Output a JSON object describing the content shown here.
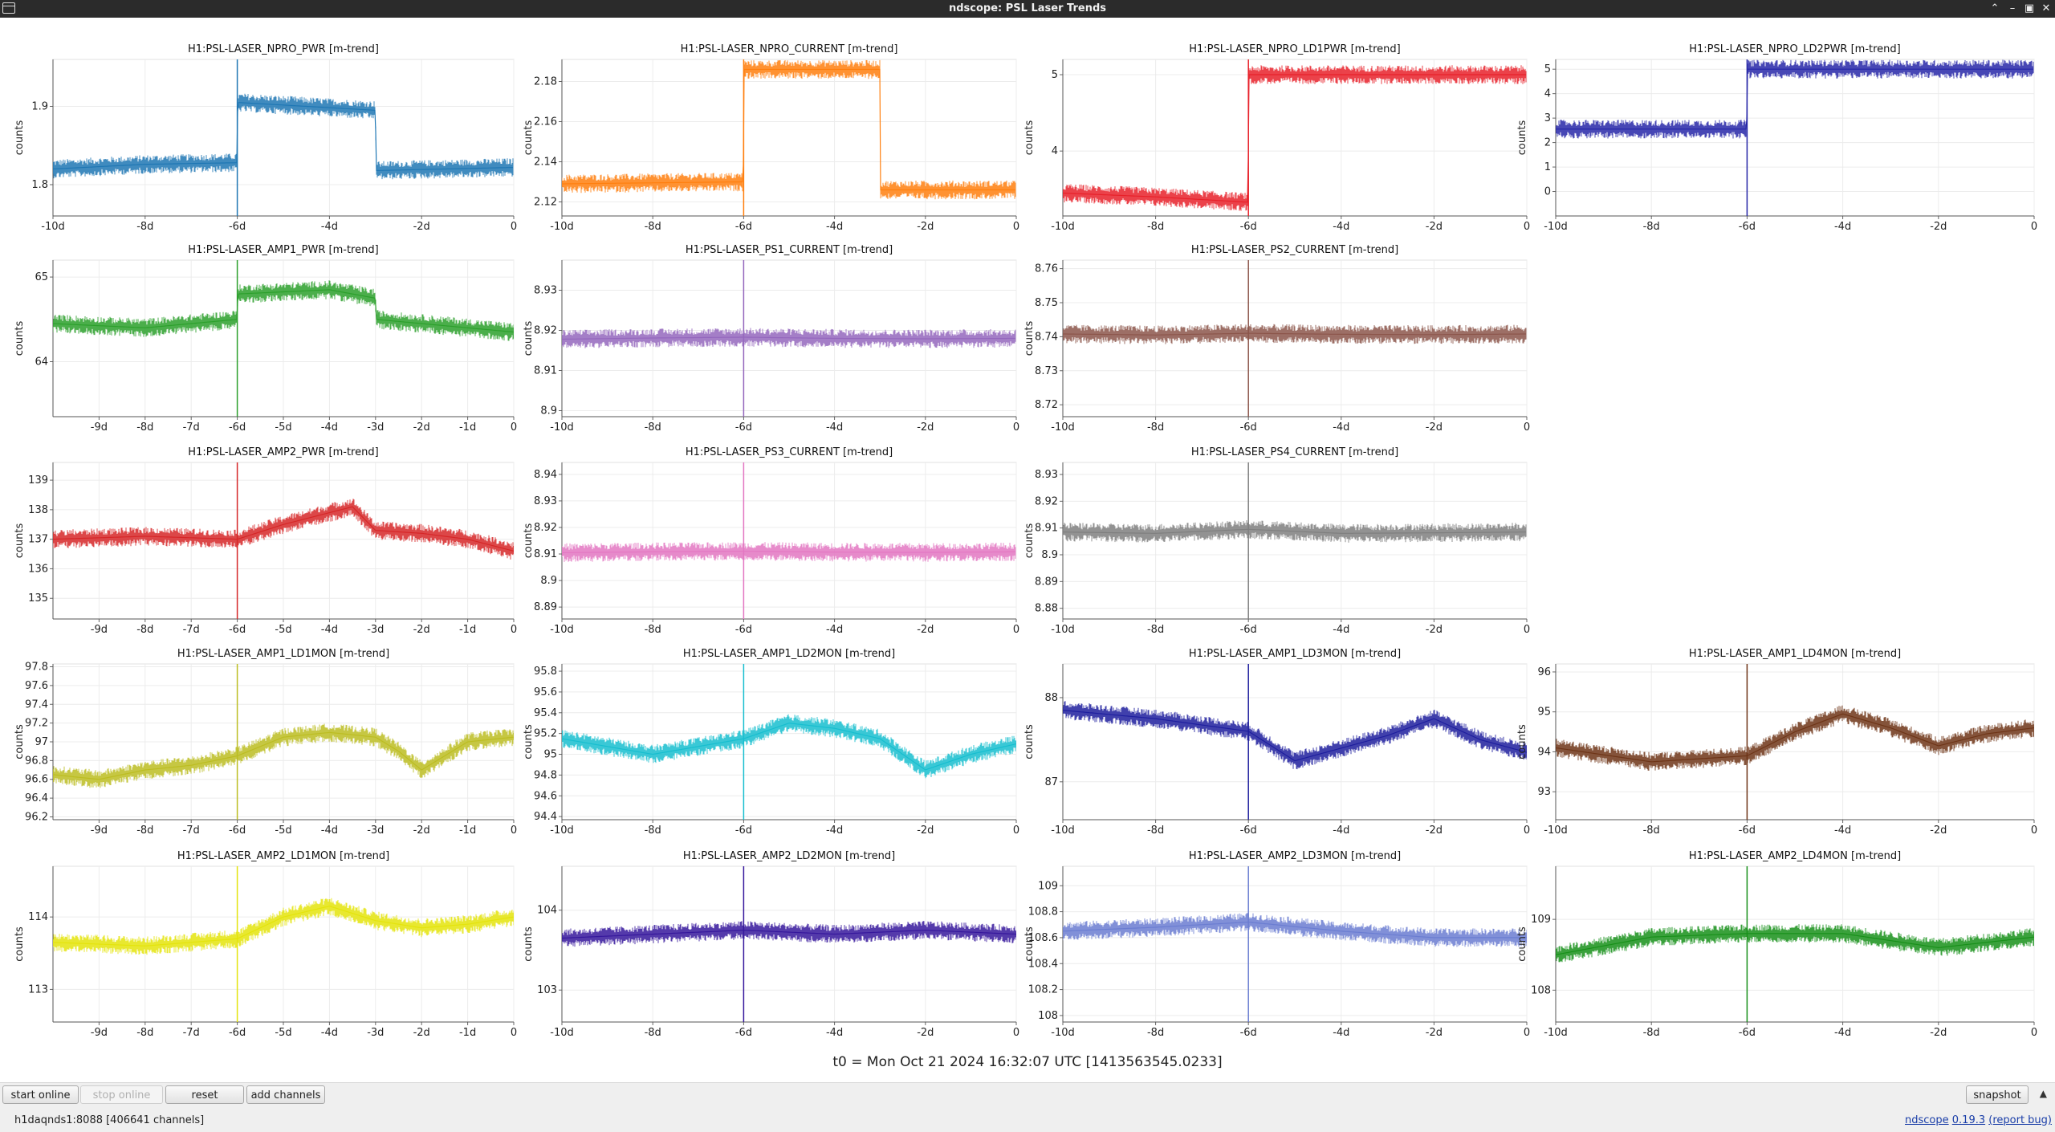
{
  "window": {
    "title": "ndscope: PSL Laser Trends"
  },
  "axis_label": "counts",
  "t0_label": "t0 = Mon Oct 21 2024 16:32:07 UTC [1413563545.0233]",
  "buttons": {
    "start_online": "start online",
    "stop_online": "stop online",
    "reset": "reset",
    "add_channels": "add channels",
    "snapshot": "snapshot"
  },
  "status": "h1daqnds1:8088  [406641 channels]",
  "version": {
    "name": "ndscope",
    "number": "0.19.3",
    "report_bug": "(report bug)"
  },
  "chart_data": [
    {
      "type": "line",
      "title": "H1:PSL-LASER_NPRO_PWR [m-trend]",
      "ylabel": "counts",
      "color": "#1f77b4",
      "ylim": [
        1.76,
        1.96
      ],
      "yticks": [
        "1.8",
        "1.9"
      ],
      "xlim": [
        -10,
        0
      ],
      "xticks": [
        "-10d",
        "-8d",
        "-6d",
        "-4d",
        "-2d",
        "0"
      ],
      "series": [
        {
          "x": [
            -10,
            -8,
            -6.01,
            -5.99,
            -3,
            -2.99,
            -0.01
          ],
          "y": [
            1.82,
            1.826,
            1.828,
            1.905,
            1.895,
            1.818,
            1.822
          ]
        }
      ]
    },
    {
      "type": "line",
      "title": "H1:PSL-LASER_NPRO_CURRENT [m-trend]",
      "ylabel": "counts",
      "color": "#ff7f0e",
      "ylim": [
        2.113,
        2.191
      ],
      "yticks": [
        "2.12",
        "2.14",
        "2.16",
        "2.18"
      ],
      "xlim": [
        -10,
        0
      ],
      "xticks": [
        "-10d",
        "-8d",
        "-6d",
        "-4d",
        "-2d",
        "0"
      ],
      "series": [
        {
          "x": [
            -10,
            -6.01,
            -5.99,
            -3,
            -2.99,
            -0.01
          ],
          "y": [
            2.129,
            2.13,
            2.186,
            2.186,
            2.126,
            2.126
          ]
        }
      ]
    },
    {
      "type": "line",
      "title": "H1:PSL-LASER_NPRO_LD1PWR [m-trend]",
      "ylabel": "counts",
      "color": "#e8212a",
      "ylim": [
        3.15,
        5.2
      ],
      "yticks": [
        "4",
        "5"
      ],
      "xlim": [
        -10,
        0
      ],
      "xticks": [
        "-10d",
        "-8d",
        "-6d",
        "-4d",
        "-2d",
        "0"
      ],
      "series": [
        {
          "x": [
            -10,
            -8,
            -6.01,
            -5.99,
            -0.01
          ],
          "y": [
            3.45,
            3.4,
            3.33,
            5,
            5
          ]
        }
      ]
    },
    {
      "type": "line",
      "title": "H1:PSL-LASER_NPRO_LD2PWR [m-trend]",
      "ylabel": "counts",
      "color": "#2727a8",
      "ylim": [
        -1,
        5.4
      ],
      "yticks": [
        "0",
        "1",
        "2",
        "3",
        "4",
        "5"
      ],
      "xlim": [
        -10,
        0
      ],
      "xticks": [
        "-10d",
        "-8d",
        "-6d",
        "-4d",
        "-2d",
        "0"
      ],
      "series": [
        {
          "x": [
            -10,
            -6.01,
            -5.99,
            -0.01
          ],
          "y": [
            2.55,
            2.55,
            5,
            5
          ]
        }
      ]
    },
    {
      "type": "line",
      "title": "H1:PSL-LASER_AMP1_PWR [m-trend]",
      "ylabel": "counts",
      "color": "#2ca02c",
      "ylim": [
        63.35,
        65.2
      ],
      "yticks": [
        "64",
        "65"
      ],
      "xlim": [
        -10,
        0
      ],
      "xticks": [
        "-9d",
        "-8d",
        "-7d",
        "-6d",
        "-5d",
        "-4d",
        "-3d",
        "-2d",
        "-1d",
        "0"
      ],
      "series": [
        {
          "x": [
            -10,
            -8,
            -6,
            -5.99,
            -4,
            -3,
            -2.99,
            -1,
            0
          ],
          "y": [
            64.45,
            64.4,
            64.5,
            64.8,
            64.85,
            64.75,
            64.5,
            64.4,
            64.35
          ]
        }
      ]
    },
    {
      "type": "line",
      "title": "H1:PSL-LASER_PS1_CURRENT [m-trend]",
      "ylabel": "counts",
      "color": "#9467bd",
      "ylim": [
        8.8985,
        8.9375
      ],
      "yticks": [
        "8.9",
        "8.91",
        "8.92",
        "8.93"
      ],
      "xlim": [
        -10,
        0
      ],
      "xticks": [
        "-10d",
        "-8d",
        "-6d",
        "-4d",
        "-2d",
        "0"
      ],
      "series": [
        {
          "x": [
            -10,
            -8,
            -6,
            -4,
            -2,
            -0.01
          ],
          "y": [
            8.9178,
            8.9181,
            8.9183,
            8.918,
            8.9179,
            8.918
          ]
        }
      ]
    },
    {
      "type": "line",
      "title": "H1:PSL-LASER_PS2_CURRENT [m-trend]",
      "ylabel": "counts",
      "color": "#8c564b",
      "ylim": [
        8.7165,
        8.7625
      ],
      "yticks": [
        "8.72",
        "8.73",
        "8.74",
        "8.75",
        "8.76"
      ],
      "xlim": [
        -10,
        0
      ],
      "xticks": [
        "-10d",
        "-8d",
        "-6d",
        "-4d",
        "-2d",
        "0"
      ],
      "series": [
        {
          "x": [
            -10,
            -8,
            -6,
            -4,
            -2,
            -0.01
          ],
          "y": [
            8.7408,
            8.7405,
            8.741,
            8.7407,
            8.7406,
            8.7408
          ]
        }
      ]
    },
    {
      "type": "line",
      "title": "H1:PSL-LASER_AMP2_PWR [m-trend]",
      "ylabel": "counts",
      "color": "#d62728",
      "ylim": [
        134.3,
        139.6
      ],
      "yticks": [
        "135",
        "136",
        "137",
        "138",
        "139"
      ],
      "xlim": [
        -10,
        0
      ],
      "xticks": [
        "-9d",
        "-8d",
        "-7d",
        "-6d",
        "-5d",
        "-4d",
        "-3d",
        "-2d",
        "-1d",
        "0"
      ],
      "series": [
        {
          "x": [
            -10,
            -8,
            -6,
            -5,
            -4,
            -3.5,
            -3,
            -2,
            -1,
            0
          ],
          "y": [
            137,
            137.1,
            137,
            137.5,
            137.9,
            138.1,
            137.3,
            137.2,
            137,
            136.6
          ]
        }
      ]
    },
    {
      "type": "line",
      "title": "H1:PSL-LASER_PS3_CURRENT [m-trend]",
      "ylabel": "counts",
      "color": "#e377c2",
      "ylim": [
        8.8855,
        8.9445
      ],
      "yticks": [
        "8.89",
        "8.9",
        "8.91",
        "8.92",
        "8.93",
        "8.94"
      ],
      "xlim": [
        -10,
        0
      ],
      "xticks": [
        "-10d",
        "-8d",
        "-6d",
        "-4d",
        "-2d",
        "0"
      ],
      "series": [
        {
          "x": [
            -10,
            -8,
            -6,
            -4,
            -2,
            -0.01
          ],
          "y": [
            8.9105,
            8.9108,
            8.911,
            8.9107,
            8.9106,
            8.9108
          ]
        }
      ]
    },
    {
      "type": "line",
      "title": "H1:PSL-LASER_PS4_CURRENT [m-trend]",
      "ylabel": "counts",
      "color": "#7f7f7f",
      "ylim": [
        8.876,
        8.9345
      ],
      "yticks": [
        "8.88",
        "8.89",
        "8.9",
        "8.91",
        "8.92",
        "8.93"
      ],
      "xlim": [
        -10,
        0
      ],
      "xticks": [
        "-10d",
        "-8d",
        "-6d",
        "-4d",
        "-2d",
        "0"
      ],
      "series": [
        {
          "x": [
            -10,
            -8,
            -6,
            -4,
            -2,
            -0.01
          ],
          "y": [
            8.9085,
            8.908,
            8.9095,
            8.908,
            8.9082,
            8.9085
          ]
        }
      ]
    },
    {
      "type": "line",
      "title": "H1:PSL-LASER_AMP1_LD1MON [m-trend]",
      "ylabel": "counts",
      "color": "#bcbd22",
      "ylim": [
        96.17,
        97.83
      ],
      "yticks": [
        "96.2",
        "96.4",
        "96.6",
        "96.8",
        "97",
        "97.2",
        "97.4",
        "97.6",
        "97.8"
      ],
      "xlim": [
        -10,
        0
      ],
      "xticks": [
        "-9d",
        "-8d",
        "-7d",
        "-6d",
        "-5d",
        "-4d",
        "-3d",
        "-2d",
        "-1d",
        "0"
      ],
      "series": [
        {
          "x": [
            -10,
            -9,
            -8,
            -7,
            -6,
            -5,
            -4,
            -3,
            -2.5,
            -2,
            -1,
            0
          ],
          "y": [
            96.65,
            96.6,
            96.7,
            96.75,
            96.85,
            97.05,
            97.1,
            97.05,
            96.9,
            96.7,
            97,
            97.05
          ]
        }
      ]
    },
    {
      "type": "line",
      "title": "H1:PSL-LASER_AMP1_LD2MON [m-trend]",
      "ylabel": "counts",
      "color": "#17becf",
      "ylim": [
        94.37,
        95.87
      ],
      "yticks": [
        "94.4",
        "94.6",
        "94.8",
        "95",
        "95.2",
        "95.4",
        "95.6",
        "95.8"
      ],
      "xlim": [
        -10,
        0
      ],
      "xticks": [
        "-10d",
        "-8d",
        "-6d",
        "-4d",
        "-2d",
        "0"
      ],
      "series": [
        {
          "x": [
            -10,
            -8,
            -6,
            -5,
            -4,
            -3,
            -2,
            -1,
            0
          ],
          "y": [
            95.15,
            95,
            95.15,
            95.3,
            95.25,
            95.15,
            94.85,
            95,
            95.1
          ]
        }
      ]
    },
    {
      "type": "line",
      "title": "H1:PSL-LASER_AMP1_LD3MON [m-trend]",
      "ylabel": "counts",
      "color": "#1f1f9e",
      "ylim": [
        86.55,
        88.4
      ],
      "yticks": [
        "87",
        "88"
      ],
      "xlim": [
        -10,
        0
      ],
      "xticks": [
        "-10d",
        "-8d",
        "-6d",
        "-4d",
        "-2d",
        "0"
      ],
      "series": [
        {
          "x": [
            -10,
            -8,
            -6,
            -5,
            -4,
            -3,
            -2,
            -1,
            0
          ],
          "y": [
            87.85,
            87.75,
            87.6,
            87.25,
            87.4,
            87.55,
            87.75,
            87.5,
            87.35
          ]
        }
      ]
    },
    {
      "type": "line",
      "title": "H1:PSL-LASER_AMP1_LD4MON [m-trend]",
      "ylabel": "counts",
      "color": "#6e3518",
      "ylim": [
        92.3,
        96.2
      ],
      "yticks": [
        "93",
        "94",
        "95",
        "96"
      ],
      "xlim": [
        -10,
        0
      ],
      "xticks": [
        "-10d",
        "-8d",
        "-6d",
        "-4d",
        "-2d",
        "0"
      ],
      "series": [
        {
          "x": [
            -10,
            -8,
            -6,
            -5,
            -4,
            -3,
            -2,
            -1,
            0
          ],
          "y": [
            94.1,
            93.75,
            93.9,
            94.5,
            94.95,
            94.6,
            94.15,
            94.45,
            94.6
          ]
        }
      ]
    },
    {
      "type": "line",
      "title": "H1:PSL-LASER_AMP2_LD1MON [m-trend]",
      "ylabel": "counts",
      "color": "#e4e40c",
      "ylim": [
        112.55,
        114.7
      ],
      "yticks": [
        "113",
        "114"
      ],
      "xlim": [
        -10,
        0
      ],
      "xticks": [
        "-9d",
        "-8d",
        "-7d",
        "-6d",
        "-5d",
        "-4d",
        "-3d",
        "-2d",
        "-1d",
        "0"
      ],
      "series": [
        {
          "x": [
            -10,
            -8,
            -6,
            -5,
            -4,
            -3,
            -2,
            -1,
            0
          ],
          "y": [
            113.65,
            113.6,
            113.7,
            114,
            114.15,
            113.95,
            113.85,
            113.9,
            114
          ]
        }
      ]
    },
    {
      "type": "line",
      "title": "H1:PSL-LASER_AMP2_LD2MON [m-trend]",
      "ylabel": "counts",
      "color": "#36189c",
      "ylim": [
        102.6,
        104.55
      ],
      "yticks": [
        "103",
        "104"
      ],
      "xlim": [
        -10,
        0
      ],
      "xticks": [
        "-10d",
        "-8d",
        "-6d",
        "-4d",
        "-2d",
        "0"
      ],
      "series": [
        {
          "x": [
            -10,
            -8,
            -6,
            -4,
            -2,
            0
          ],
          "y": [
            103.65,
            103.7,
            103.75,
            103.7,
            103.75,
            103.7
          ]
        }
      ]
    },
    {
      "type": "line",
      "title": "H1:PSL-LASER_AMP2_LD3MON [m-trend]",
      "ylabel": "counts",
      "color": "#6b7dd1",
      "ylim": [
        107.95,
        109.15
      ],
      "yticks": [
        "108",
        "108.2",
        "108.4",
        "108.6",
        "108.8",
        "109"
      ],
      "xlim": [
        -10,
        0
      ],
      "xticks": [
        "-10d",
        "-8d",
        "-6d",
        "-4d",
        "-2d",
        "0"
      ],
      "series": [
        {
          "x": [
            -10,
            -8,
            -6,
            -4,
            -2,
            0
          ],
          "y": [
            108.65,
            108.68,
            108.72,
            108.65,
            108.6,
            108.6
          ]
        }
      ]
    },
    {
      "type": "line",
      "title": "H1:PSL-LASER_AMP2_LD4MON [m-trend]",
      "ylabel": "counts",
      "color": "#18901a",
      "ylim": [
        107.55,
        109.75
      ],
      "yticks": [
        "108",
        "109"
      ],
      "xlim": [
        -10,
        0
      ],
      "xticks": [
        "-10d",
        "-8d",
        "-6d",
        "-4d",
        "-2d",
        "0"
      ],
      "series": [
        {
          "x": [
            -10,
            -8,
            -6,
            -4,
            -2,
            0
          ],
          "y": [
            108.5,
            108.75,
            108.8,
            108.8,
            108.6,
            108.75
          ]
        }
      ]
    }
  ]
}
